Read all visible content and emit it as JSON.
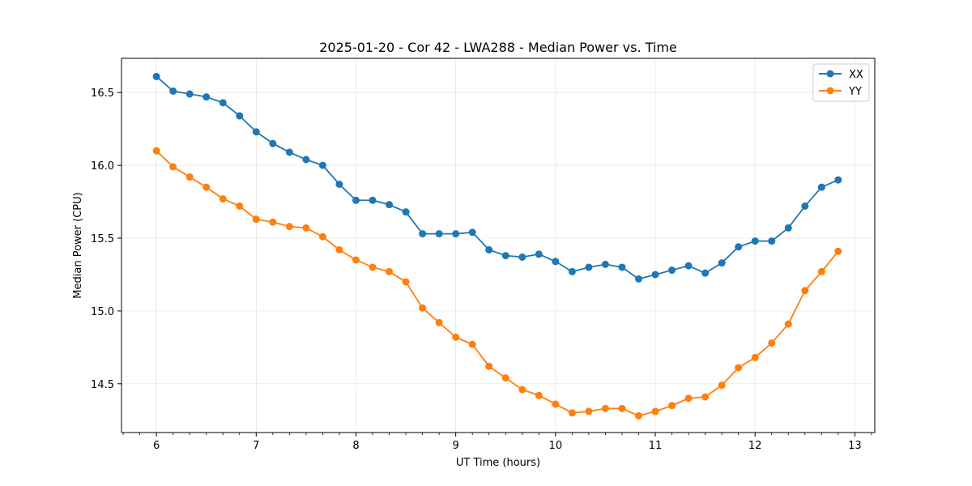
{
  "chart_data": {
    "type": "line",
    "title": "2025-01-20 - Cor 42 - LWA288 - Median Power vs. Time",
    "xlabel": "UT Time (hours)",
    "ylabel": "Median Power (CPU)",
    "xlim": [
      5.65,
      13.2
    ],
    "ylim": [
      14.165,
      16.735
    ],
    "xticks": [
      6,
      7,
      8,
      9,
      10,
      11,
      12,
      13
    ],
    "yticks": [
      14.5,
      15.0,
      15.5,
      16.0,
      16.5
    ],
    "xtick_labels": [
      "6",
      "7",
      "8",
      "9",
      "10",
      "11",
      "12",
      "13"
    ],
    "ytick_labels": [
      "14.5",
      "15.0",
      "15.5",
      "16.0",
      "16.5"
    ],
    "grid": true,
    "legend_position": "top-right",
    "x": [
      6.0,
      6.1667,
      6.3333,
      6.5,
      6.6667,
      6.8333,
      7.0,
      7.1667,
      7.3333,
      7.5,
      7.6667,
      7.8333,
      8.0,
      8.1667,
      8.3333,
      8.5,
      8.6667,
      8.8333,
      9.0,
      9.1667,
      9.3333,
      9.5,
      9.6667,
      9.8333,
      10.0,
      10.1667,
      10.3333,
      10.5,
      10.6667,
      10.8333,
      11.0,
      11.1667,
      11.3333,
      11.5,
      11.6667,
      11.8333,
      12.0,
      12.1667,
      12.3333,
      12.5,
      12.6667,
      12.8333
    ],
    "series": [
      {
        "name": "XX",
        "color": "#1f77b4",
        "values": [
          16.61,
          16.51,
          16.49,
          16.47,
          16.43,
          16.34,
          16.23,
          16.15,
          16.09,
          16.04,
          16.0,
          15.87,
          15.76,
          15.76,
          15.73,
          15.68,
          15.53,
          15.53,
          15.53,
          15.54,
          15.42,
          15.38,
          15.37,
          15.39,
          15.34,
          15.27,
          15.3,
          15.32,
          15.3,
          15.22,
          15.25,
          15.28,
          15.31,
          15.26,
          15.33,
          15.44,
          15.48,
          15.48,
          15.57,
          15.72,
          15.85,
          15.9
        ]
      },
      {
        "name": "YY",
        "color": "#ff7f0e",
        "values": [
          16.1,
          15.99,
          15.92,
          15.85,
          15.77,
          15.72,
          15.63,
          15.61,
          15.58,
          15.57,
          15.51,
          15.42,
          15.35,
          15.3,
          15.27,
          15.2,
          15.02,
          14.92,
          14.82,
          14.77,
          14.62,
          14.54,
          14.46,
          14.42,
          14.36,
          14.3,
          14.31,
          14.33,
          14.33,
          14.28,
          14.31,
          14.35,
          14.4,
          14.41,
          14.49,
          14.61,
          14.68,
          14.78,
          14.91,
          15.14,
          15.27,
          15.41
        ]
      }
    ]
  }
}
